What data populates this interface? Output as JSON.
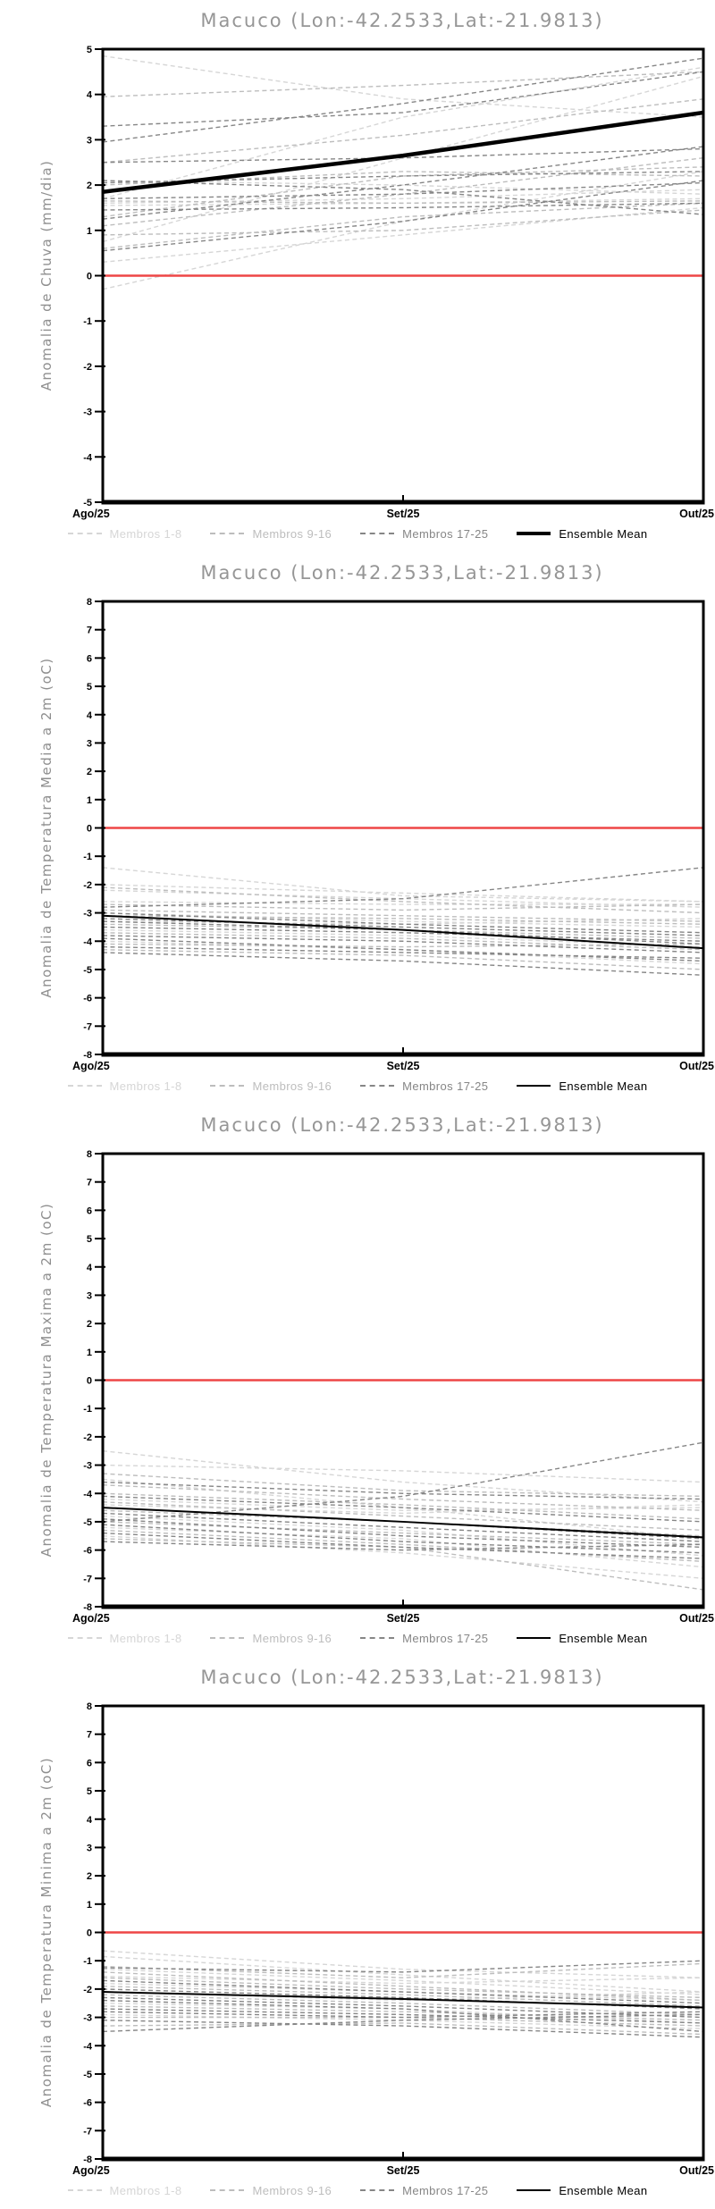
{
  "page_title": "Macuco (Lon:-42.2533,Lat:-21.9813)",
  "legend": {
    "items": [
      {
        "label": "Membros 1-8",
        "color": "#d6d6d6",
        "style": "dashed"
      },
      {
        "label": "Membros 9-16",
        "color": "#bdbdbd",
        "style": "dashed"
      },
      {
        "label": "Membros 17-25",
        "color": "#868686",
        "style": "dashed"
      },
      {
        "label": "Ensemble Mean",
        "color": "#000000",
        "style": "solid"
      }
    ]
  },
  "colors": {
    "zero_line": "#ee4646",
    "axis": "#000000",
    "title": "#969696",
    "member_groups": [
      "#d6d6d6",
      "#bdbdbd",
      "#868686"
    ],
    "mean": "#000000"
  },
  "chart_data": [
    {
      "type": "line",
      "title": "Macuco (Lon:-42.2533,Lat:-21.9813)",
      "ylabel": "Anomalia de Chuva (mm/dia)",
      "categories": [
        "Ago/25",
        "Set/25",
        "Out/25"
      ],
      "ylim": [
        -5,
        5
      ],
      "ytick_step": 1,
      "zero_line": 0,
      "grid": false,
      "legend_position": "bottom",
      "mean": {
        "name": "Ensemble Mean",
        "values": [
          1.85,
          2.65,
          3.6
        ],
        "width": 4.5
      },
      "members": [
        {
          "group": "1-8",
          "values": [
            4.85,
            3.9,
            3.5
          ]
        },
        {
          "group": "1-8",
          "values": [
            0.75,
            2.6,
            4.4
          ]
        },
        {
          "group": "1-8",
          "values": [
            -0.3,
            1.2,
            2.3
          ]
        },
        {
          "group": "1-8",
          "values": [
            1.6,
            1.7,
            1.9
          ]
        },
        {
          "group": "1-8",
          "values": [
            0.3,
            0.9,
            1.5
          ]
        },
        {
          "group": "1-8",
          "values": [
            1.7,
            3.5,
            4.6
          ]
        },
        {
          "group": "1-8",
          "values": [
            2.1,
            2.0,
            1.8
          ]
        },
        {
          "group": "1-8",
          "values": [
            1.55,
            1.6,
            1.7
          ]
        },
        {
          "group": "9-16",
          "values": [
            3.95,
            4.2,
            4.5
          ]
        },
        {
          "group": "9-16",
          "values": [
            1.1,
            1.8,
            2.6
          ]
        },
        {
          "group": "9-16",
          "values": [
            2.0,
            2.3,
            2.2
          ]
        },
        {
          "group": "9-16",
          "values": [
            0.6,
            1.3,
            1.6
          ]
        },
        {
          "group": "9-16",
          "values": [
            1.65,
            1.6,
            1.65
          ]
        },
        {
          "group": "9-16",
          "values": [
            2.5,
            3.1,
            3.9
          ]
        },
        {
          "group": "9-16",
          "values": [
            1.3,
            2.2,
            2.4
          ]
        },
        {
          "group": "9-16",
          "values": [
            0.9,
            1.0,
            1.45
          ]
        },
        {
          "group": "17-25",
          "values": [
            2.95,
            3.8,
            4.8
          ]
        },
        {
          "group": "17-25",
          "values": [
            2.05,
            2.2,
            2.3
          ]
        },
        {
          "group": "17-25",
          "values": [
            1.25,
            2.0,
            2.85
          ]
        },
        {
          "group": "17-25",
          "values": [
            0.55,
            1.2,
            2.1
          ]
        },
        {
          "group": "17-25",
          "values": [
            2.5,
            2.6,
            2.8
          ]
        },
        {
          "group": "17-25",
          "values": [
            1.7,
            1.8,
            2.05
          ]
        },
        {
          "group": "17-25",
          "values": [
            3.3,
            3.6,
            4.5
          ]
        },
        {
          "group": "17-25",
          "values": [
            1.45,
            1.5,
            1.6
          ]
        },
        {
          "group": "17-25",
          "values": [
            2.1,
            1.9,
            1.35
          ]
        }
      ]
    },
    {
      "type": "line",
      "title": "Macuco (Lon:-42.2533,Lat:-21.9813)",
      "ylabel": "Anomalia de Temperatura Media a 2m (oC)",
      "categories": [
        "Ago/25",
        "Set/25",
        "Out/25"
      ],
      "ylim": [
        -8,
        8
      ],
      "ytick_step": 1,
      "zero_line": 0,
      "grid": false,
      "legend_position": "bottom",
      "mean": {
        "name": "Ensemble Mean",
        "values": [
          -3.1,
          -3.6,
          -4.25
        ],
        "width": 2
      },
      "members": [
        {
          "group": "1-8",
          "values": [
            -1.4,
            -2.4,
            -2.6
          ]
        },
        {
          "group": "1-8",
          "values": [
            -2.0,
            -2.3,
            -2.6
          ]
        },
        {
          "group": "1-8",
          "values": [
            -2.2,
            -2.5,
            -2.8
          ]
        },
        {
          "group": "1-8",
          "values": [
            -2.6,
            -2.7,
            -2.7
          ]
        },
        {
          "group": "1-8",
          "values": [
            -3.0,
            -3.3,
            -3.5
          ]
        },
        {
          "group": "1-8",
          "values": [
            -3.3,
            -3.4,
            -3.2
          ]
        },
        {
          "group": "1-8",
          "values": [
            -3.6,
            -3.8,
            -4.2
          ]
        },
        {
          "group": "1-8",
          "values": [
            -4.0,
            -4.3,
            -4.8
          ]
        },
        {
          "group": "9-16",
          "values": [
            -2.1,
            -2.6,
            -3.0
          ]
        },
        {
          "group": "9-16",
          "values": [
            -2.7,
            -2.9,
            -2.7
          ]
        },
        {
          "group": "9-16",
          "values": [
            -3.1,
            -3.2,
            -3.4
          ]
        },
        {
          "group": "9-16",
          "values": [
            -3.4,
            -3.6,
            -3.9
          ]
        },
        {
          "group": "9-16",
          "values": [
            -3.7,
            -3.9,
            -4.3
          ]
        },
        {
          "group": "9-16",
          "values": [
            -4.1,
            -4.2,
            -4.1
          ]
        },
        {
          "group": "9-16",
          "values": [
            -4.3,
            -4.5,
            -5.0
          ]
        },
        {
          "group": "9-16",
          "values": [
            -2.9,
            -3.1,
            -3.3
          ]
        },
        {
          "group": "17-25",
          "values": [
            -2.8,
            -2.5,
            -1.4
          ]
        },
        {
          "group": "17-25",
          "values": [
            -3.2,
            -3.5,
            -3.8
          ]
        },
        {
          "group": "17-25",
          "values": [
            -3.5,
            -3.7,
            -4.0
          ]
        },
        {
          "group": "17-25",
          "values": [
            -3.8,
            -4.0,
            -4.4
          ]
        },
        {
          "group": "17-25",
          "values": [
            -4.2,
            -4.4,
            -4.6
          ]
        },
        {
          "group": "17-25",
          "values": [
            -4.4,
            -4.7,
            -5.2
          ]
        },
        {
          "group": "17-25",
          "values": [
            -3.0,
            -3.4,
            -3.7
          ]
        },
        {
          "group": "17-25",
          "values": [
            -3.3,
            -3.6,
            -4.1
          ]
        },
        {
          "group": "17-25",
          "values": [
            -3.9,
            -4.3,
            -4.7
          ]
        }
      ]
    },
    {
      "type": "line",
      "title": "Macuco (Lon:-42.2533,Lat:-21.9813)",
      "ylabel": "Anomalia de Temperatura Maxima a 2m (oC)",
      "categories": [
        "Ago/25",
        "Set/25",
        "Out/25"
      ],
      "ylim": [
        -8,
        8
      ],
      "ytick_step": 1,
      "zero_line": 0,
      "grid": false,
      "legend_position": "bottom",
      "mean": {
        "name": "Ensemble Mean",
        "values": [
          -4.5,
          -5.0,
          -5.55
        ],
        "width": 2
      },
      "members": [
        {
          "group": "1-8",
          "values": [
            -2.5,
            -3.6,
            -4.3
          ]
        },
        {
          "group": "1-8",
          "values": [
            -3.0,
            -3.2,
            -3.6
          ]
        },
        {
          "group": "1-8",
          "values": [
            -3.5,
            -4.5,
            -5.6
          ]
        },
        {
          "group": "1-8",
          "values": [
            -4.2,
            -4.6,
            -4.5
          ]
        },
        {
          "group": "1-8",
          "values": [
            -4.8,
            -5.3,
            -6.2
          ]
        },
        {
          "group": "1-8",
          "values": [
            -5.2,
            -5.6,
            -6.6
          ]
        },
        {
          "group": "1-8",
          "values": [
            -5.5,
            -6.1,
            -7.0
          ]
        },
        {
          "group": "1-8",
          "values": [
            -4.4,
            -4.7,
            -4.4
          ]
        },
        {
          "group": "9-16",
          "values": [
            -3.3,
            -3.9,
            -4.1
          ]
        },
        {
          "group": "9-16",
          "values": [
            -4.0,
            -4.4,
            -4.9
          ]
        },
        {
          "group": "9-16",
          "values": [
            -4.3,
            -4.8,
            -5.3
          ]
        },
        {
          "group": "9-16",
          "values": [
            -4.6,
            -5.0,
            -5.5
          ]
        },
        {
          "group": "9-16",
          "values": [
            -5.0,
            -5.4,
            -5.8
          ]
        },
        {
          "group": "9-16",
          "values": [
            -5.3,
            -5.8,
            -6.4
          ]
        },
        {
          "group": "9-16",
          "values": [
            -5.6,
            -5.9,
            -7.4
          ]
        },
        {
          "group": "9-16",
          "values": [
            -3.7,
            -4.2,
            -4.6
          ]
        },
        {
          "group": "17-25",
          "values": [
            -5.0,
            -4.1,
            -2.2
          ]
        },
        {
          "group": "17-25",
          "values": [
            -3.6,
            -4.0,
            -4.2
          ]
        },
        {
          "group": "17-25",
          "values": [
            -4.1,
            -4.5,
            -5.0
          ]
        },
        {
          "group": "17-25",
          "values": [
            -4.5,
            -5.0,
            -5.6
          ]
        },
        {
          "group": "17-25",
          "values": [
            -4.9,
            -5.5,
            -5.9
          ]
        },
        {
          "group": "17-25",
          "values": [
            -5.1,
            -5.7,
            -6.1
          ]
        },
        {
          "group": "17-25",
          "values": [
            -5.4,
            -5.9,
            -6.3
          ]
        },
        {
          "group": "17-25",
          "values": [
            -5.7,
            -6.0,
            -5.8
          ]
        },
        {
          "group": "17-25",
          "values": [
            -4.7,
            -5.2,
            -5.7
          ]
        }
      ]
    },
    {
      "type": "line",
      "title": "Macuco (Lon:-42.2533,Lat:-21.9813)",
      "ylabel": "Anomalia de Temperatura Minima a 2m (oC)",
      "categories": [
        "Ago/25",
        "Set/25",
        "Out/25"
      ],
      "ylim": [
        -8,
        8
      ],
      "ytick_step": 1,
      "zero_line": 0,
      "grid": false,
      "legend_position": "bottom",
      "mean": {
        "name": "Ensemble Mean",
        "values": [
          -2.1,
          -2.35,
          -2.65
        ],
        "width": 2
      },
      "members": [
        {
          "group": "1-8",
          "values": [
            -0.65,
            -1.3,
            -1.6
          ]
        },
        {
          "group": "1-8",
          "values": [
            -0.85,
            -1.5,
            -2.1
          ]
        },
        {
          "group": "1-8",
          "values": [
            -1.3,
            -1.7,
            -2.2
          ]
        },
        {
          "group": "1-8",
          "values": [
            -1.55,
            -1.8,
            -1.6
          ]
        },
        {
          "group": "1-8",
          "values": [
            -1.8,
            -2.1,
            -2.4
          ]
        },
        {
          "group": "1-8",
          "values": [
            -2.1,
            -2.4,
            -2.1
          ]
        },
        {
          "group": "1-8",
          "values": [
            -2.5,
            -2.7,
            -3.2
          ]
        },
        {
          "group": "1-8",
          "values": [
            -2.9,
            -3.1,
            -3.4
          ]
        },
        {
          "group": "9-16",
          "values": [
            -1.2,
            -1.6,
            -1.1
          ]
        },
        {
          "group": "9-16",
          "values": [
            -1.6,
            -2.0,
            -2.3
          ]
        },
        {
          "group": "9-16",
          "values": [
            -1.9,
            -2.2,
            -2.6
          ]
        },
        {
          "group": "9-16",
          "values": [
            -2.2,
            -2.5,
            -2.9
          ]
        },
        {
          "group": "9-16",
          "values": [
            -2.6,
            -2.8,
            -3.1
          ]
        },
        {
          "group": "9-16",
          "values": [
            -3.0,
            -3.0,
            -3.3
          ]
        },
        {
          "group": "9-16",
          "values": [
            -3.3,
            -3.2,
            -3.6
          ]
        },
        {
          "group": "9-16",
          "values": [
            -1.4,
            -1.9,
            -2.4
          ]
        },
        {
          "group": "17-25",
          "values": [
            -1.25,
            -1.4,
            -1.0
          ]
        },
        {
          "group": "17-25",
          "values": [
            -1.7,
            -2.1,
            -2.5
          ]
        },
        {
          "group": "17-25",
          "values": [
            -2.0,
            -2.3,
            -2.7
          ]
        },
        {
          "group": "17-25",
          "values": [
            -2.3,
            -2.6,
            -3.0
          ]
        },
        {
          "group": "17-25",
          "values": [
            -2.7,
            -2.9,
            -3.2
          ]
        },
        {
          "group": "17-25",
          "values": [
            -3.1,
            -3.3,
            -3.7
          ]
        },
        {
          "group": "17-25",
          "values": [
            -3.5,
            -3.1,
            -2.9
          ]
        },
        {
          "group": "17-25",
          "values": [
            -2.4,
            -2.7,
            -3.5
          ]
        },
        {
          "group": "17-25",
          "values": [
            -2.8,
            -3.0,
            -2.8
          ]
        }
      ]
    }
  ]
}
